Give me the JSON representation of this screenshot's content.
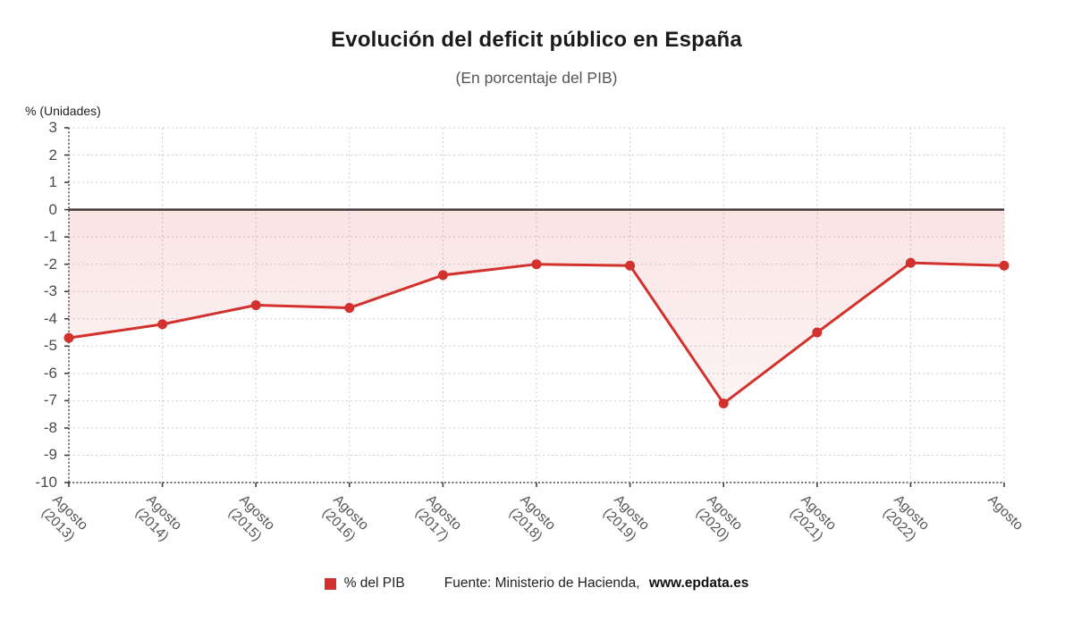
{
  "header": {
    "title": "Evolución del deficit público en España",
    "subtitle": "(En porcentaje del PIB)"
  },
  "chart_data": {
    "type": "line",
    "title": "Evolución del deficit público en España",
    "subtitle": "(En porcentaje del PIB)",
    "ylabel": "% (Unidades)",
    "xlabel": "",
    "categories": [
      "Agosto (2013)",
      "Agosto (2014)",
      "Agosto (2015)",
      "Agosto (2016)",
      "Agosto (2017)",
      "Agosto (2018)",
      "Agosto (2019)",
      "Agosto (2020)",
      "Agosto (2021)",
      "Agosto (2022)",
      "Agosto"
    ],
    "series": [
      {
        "name": "% del PIB",
        "color": "#d2312d",
        "values": [
          -4.7,
          -4.2,
          -3.5,
          -3.6,
          -2.4,
          -2.0,
          -2.05,
          -7.1,
          -4.5,
          -1.95,
          -2.05
        ]
      }
    ],
    "ylim": [
      -10,
      3
    ],
    "ytick_step": 1,
    "grid": true,
    "zero_line": true,
    "area_fill": true,
    "legend_position": "bottom"
  },
  "legend": {
    "label": "% del PIB"
  },
  "source": {
    "prefix": "Fuente: Ministerio de Hacienda,",
    "link": "www.epdata.es"
  },
  "colors": {
    "accent": "#d2312d",
    "grid": "#cdcdcd",
    "axis": "#3f3f3f",
    "zero_line": "#3a3a3a",
    "title_text": "#1a1a1a",
    "muted_text": "#555555"
  }
}
